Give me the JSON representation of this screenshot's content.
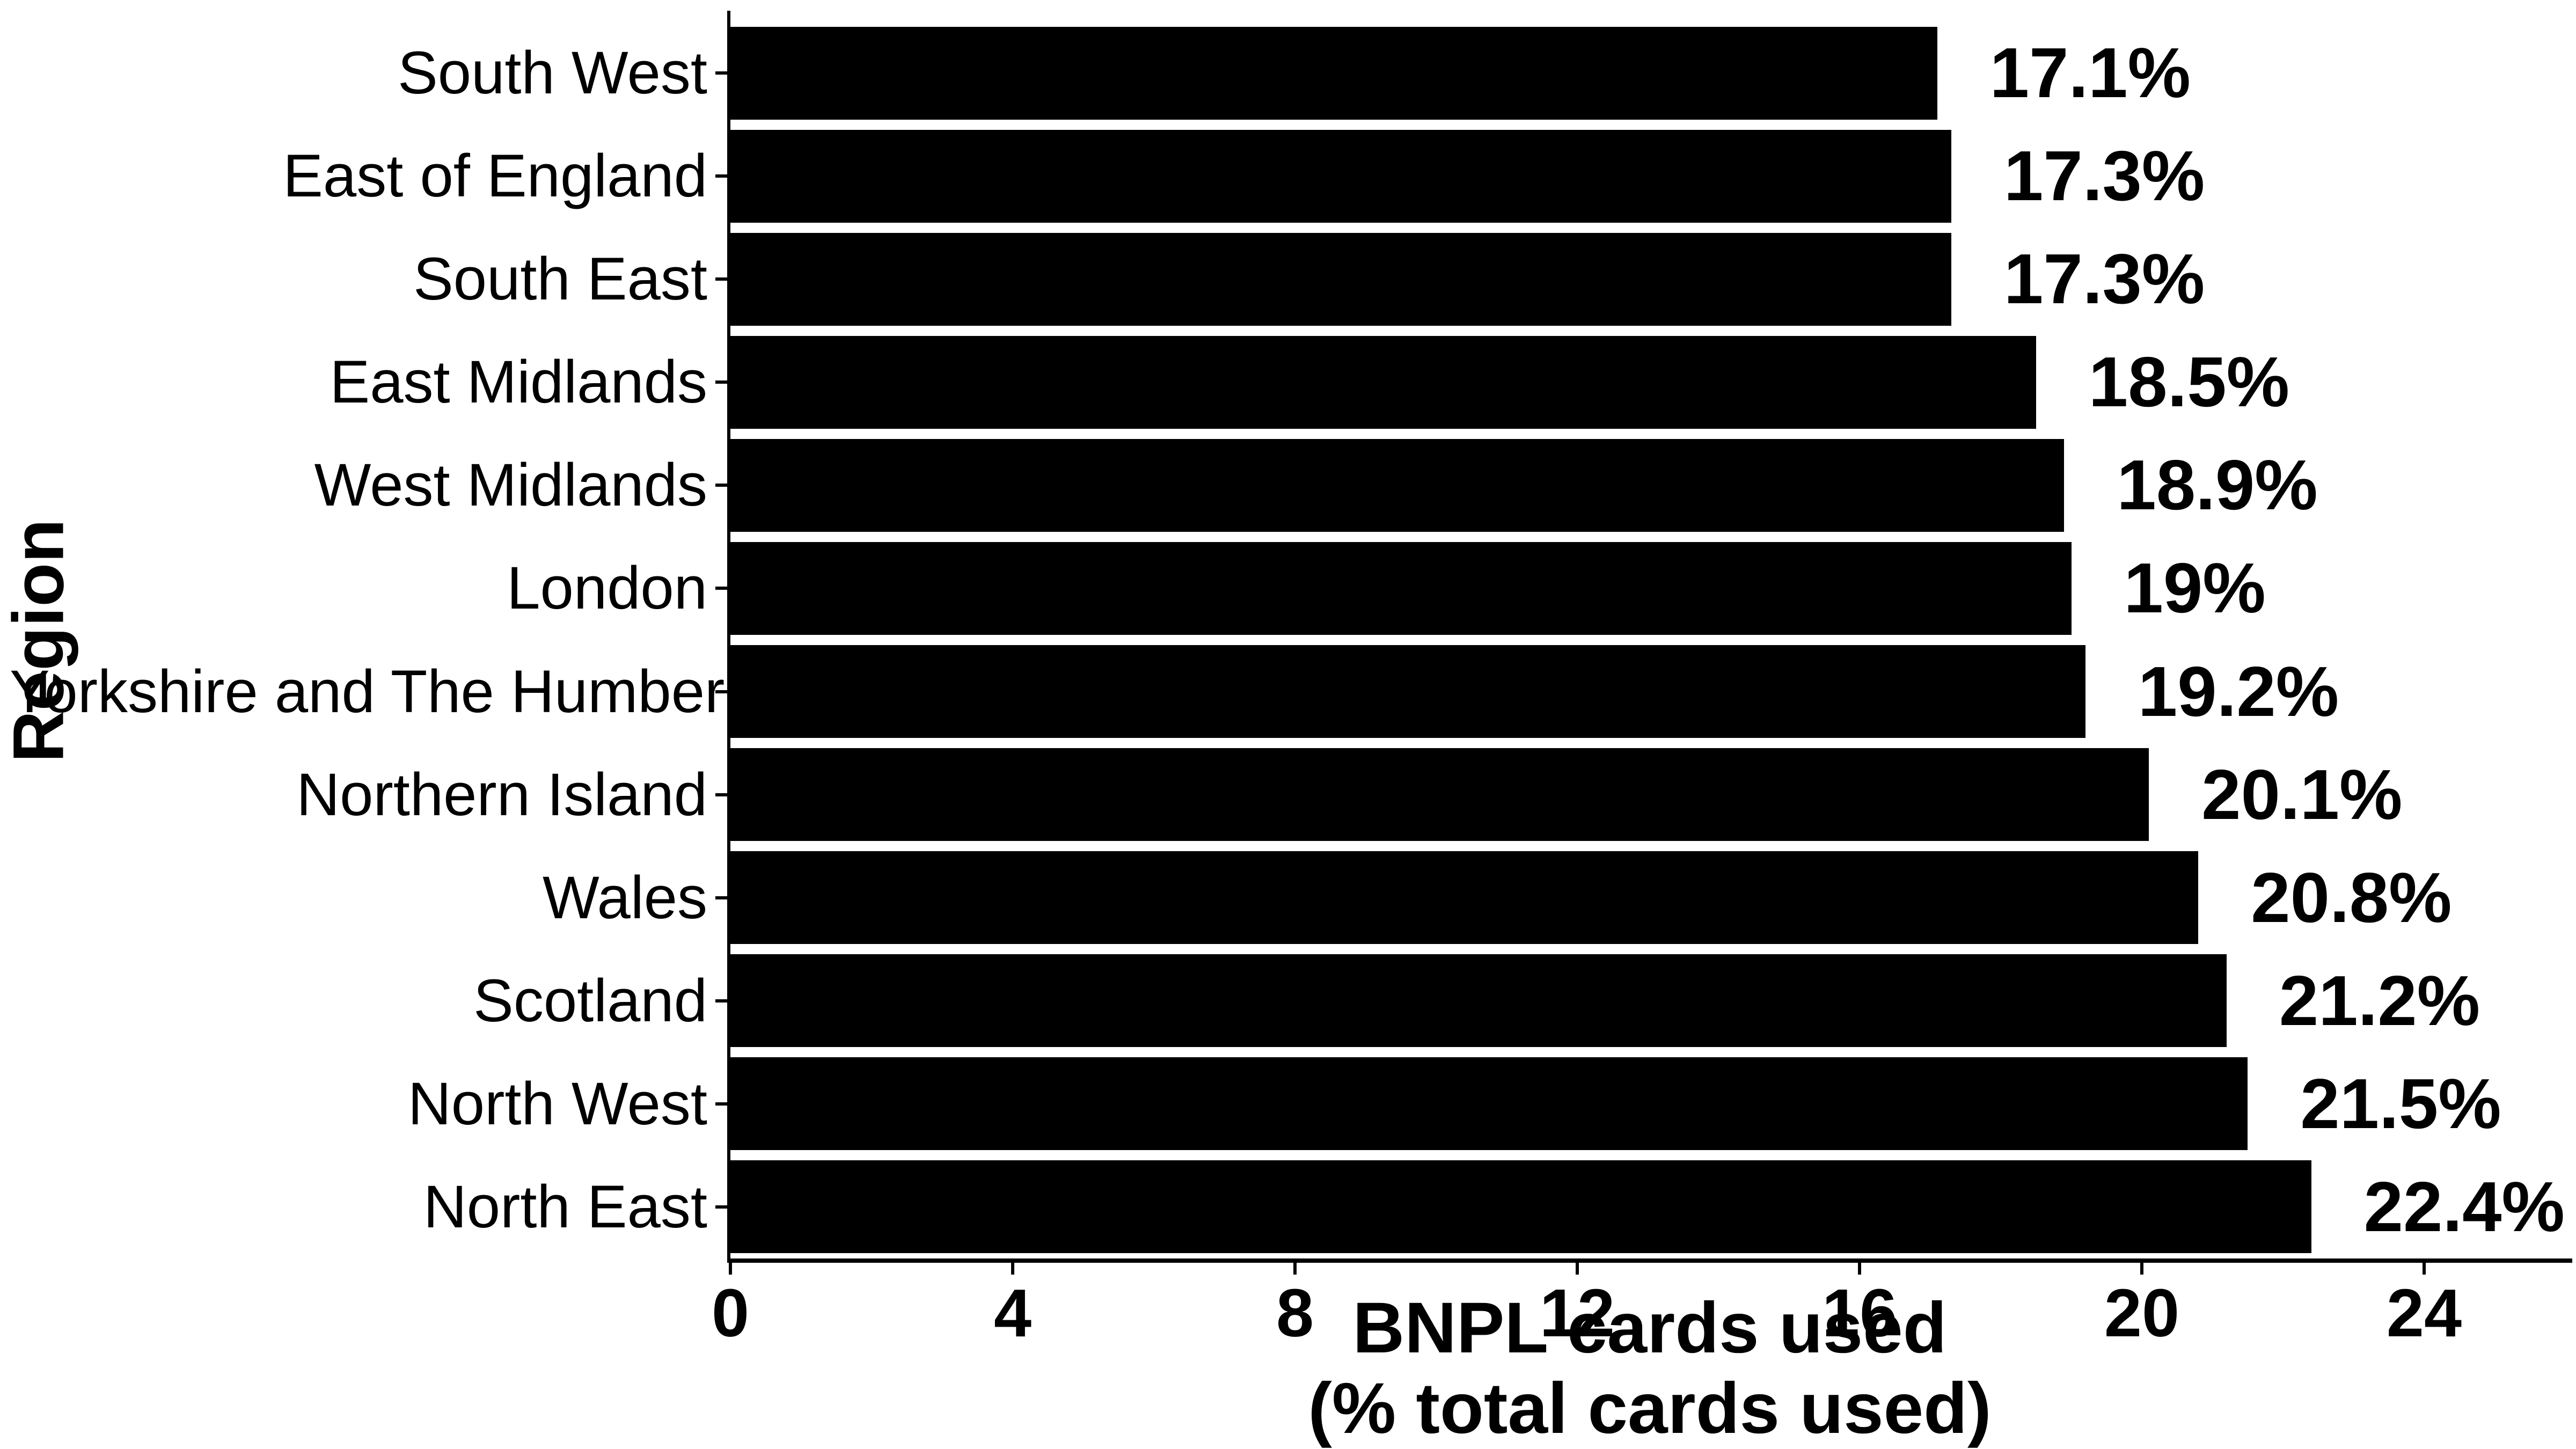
{
  "chart_data": {
    "type": "bar",
    "orientation": "horizontal",
    "title": "",
    "xlabel_line1": "BNPL cards used",
    "xlabel_line2": "(% total cards used)",
    "ylabel": "Region",
    "categories": [
      "South West",
      "East of England",
      "South East",
      "East Midlands",
      "West Midlands",
      "London",
      "Yorkshire and The Humber",
      "Northern Island",
      "Wales",
      "Scotland",
      "North West",
      "North East"
    ],
    "values": [
      17.1,
      17.3,
      17.3,
      18.5,
      18.9,
      19.0,
      19.2,
      20.1,
      20.8,
      21.2,
      21.5,
      22.4
    ],
    "value_labels": [
      "17.1%",
      "17.3%",
      "17.3%",
      "18.5%",
      "18.9%",
      "19%",
      "19.2%",
      "20.1%",
      "20.8%",
      "21.2%",
      "21.5%",
      "22.4%"
    ],
    "x_ticks": [
      0,
      4,
      8,
      12,
      16,
      20,
      24
    ],
    "xlim": [
      0,
      26
    ],
    "grid": false,
    "legend": false,
    "bar_color": "#000000",
    "text_color": "#000000",
    "background_color": "#FFFFFF"
  }
}
